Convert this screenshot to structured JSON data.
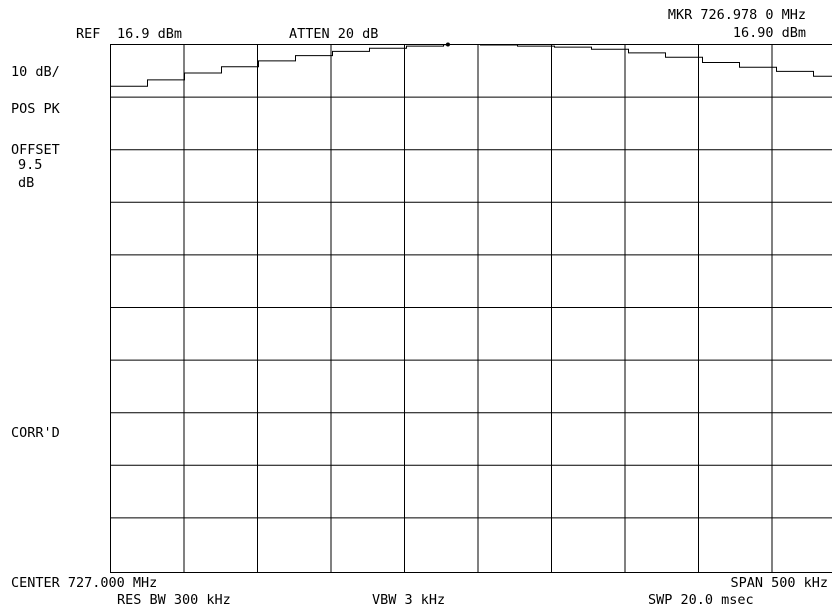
{
  "header": {
    "ref_label": "REF",
    "ref_value": "16.9 dBm",
    "atten": "ATTEN 20 dB",
    "marker_freq": "MKR 726.978 0 MHz",
    "marker_level": "16.90 dBm"
  },
  "left_annotations": {
    "scale": "10 dB/",
    "detector": "POS PK",
    "offset_label": "OFFSET",
    "offset_value": "9.5",
    "offset_unit": "dB",
    "corrected": "CORR'D"
  },
  "footer": {
    "center": "CENTER 727.000 MHz",
    "span": "SPAN 500 kHz",
    "res_bw": "RES BW 300 kHz",
    "vbw": "VBW 3 kHz",
    "sweep": "SWP 20.0 msec"
  },
  "chart_data": {
    "type": "line",
    "grid": true,
    "x_divisions": 10,
    "y_divisions": 10,
    "xlim_mhz": [
      726.75,
      727.25
    ],
    "ylim_dbm": [
      -83.1,
      16.9
    ],
    "series": [
      {
        "x": [
          726.75,
          726.775,
          726.8,
          726.825,
          726.85,
          726.875,
          726.9,
          726.925,
          726.95,
          726.975,
          726.978,
          727.0,
          727.025,
          727.05,
          727.075,
          727.1,
          727.125,
          727.15,
          727.175,
          727.2,
          727.225,
          727.25
        ],
        "y": [
          9.0,
          10.2,
          11.5,
          12.7,
          13.8,
          14.8,
          15.6,
          16.2,
          16.6,
          16.85,
          16.9,
          16.8,
          16.6,
          16.4,
          16.0,
          15.3,
          14.5,
          13.5,
          12.6,
          11.8,
          10.9,
          10.2
        ]
      }
    ]
  },
  "style": {
    "background": "#ffffff",
    "ink": "#000000"
  }
}
